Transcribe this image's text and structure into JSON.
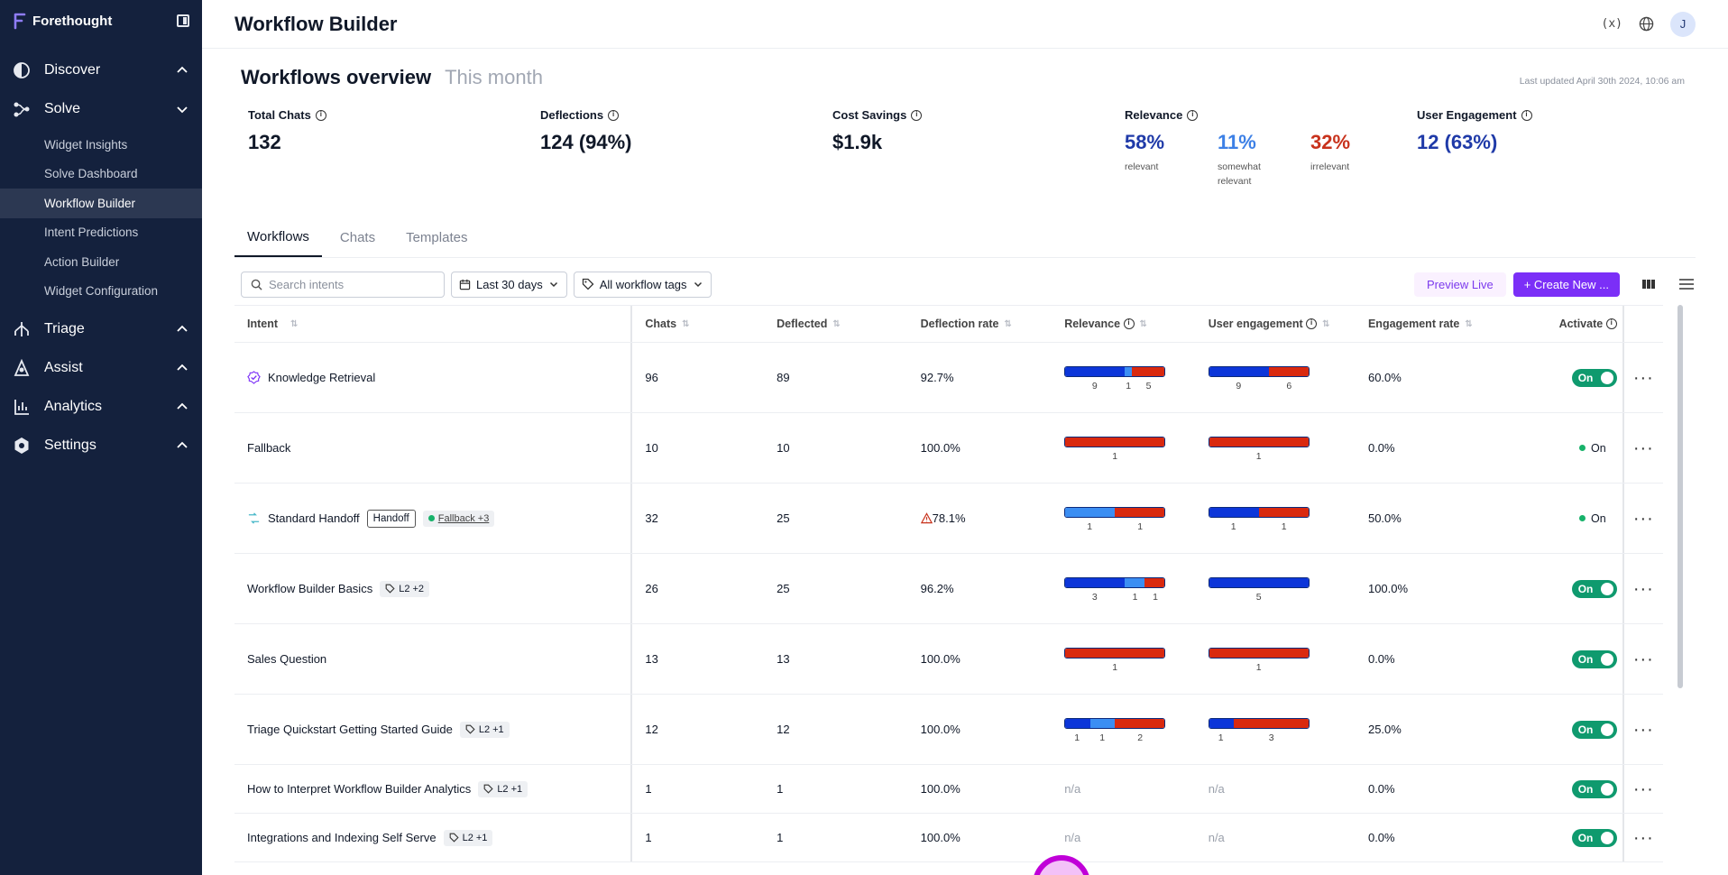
{
  "brand": {
    "name": "Forethought"
  },
  "nav": {
    "discover": "Discover",
    "solve": "Solve",
    "solve_items": [
      "Widget Insights",
      "Solve Dashboard",
      "Workflow Builder",
      "Intent Predictions",
      "Action Builder",
      "Widget Configuration"
    ],
    "triage": "Triage",
    "assist": "Assist",
    "analytics": "Analytics",
    "settings": "Settings"
  },
  "header": {
    "title": "Workflow Builder",
    "fx": "(x)",
    "avatar": "J"
  },
  "overview": {
    "title": "Workflows overview",
    "period": "This month",
    "updated": "Last updated April 30th 2024, 10:06 am",
    "total_chats": {
      "label": "Total Chats",
      "value": "132"
    },
    "deflections": {
      "label": "Deflections",
      "value": "124 (94%)"
    },
    "cost_savings": {
      "label": "Cost Savings",
      "value": "$1.9k"
    },
    "relevance": {
      "label": "Relevance",
      "relevant": {
        "value": "58%",
        "desc": "relevant"
      },
      "somewhat": {
        "value": "11%",
        "desc_1": "somewhat",
        "desc_2": "relevant"
      },
      "irrelevant": {
        "value": "32%",
        "desc": "irrelevant"
      }
    },
    "engagement": {
      "label": "User Engagement",
      "value": "12 (63%)"
    }
  },
  "tabs": [
    "Workflows",
    "Chats",
    "Templates"
  ],
  "toolbar": {
    "search_placeholder": "Search intents",
    "date_range": "Last 30 days",
    "tags": "All workflow tags",
    "preview": "Preview Live",
    "create": "+ Create New ..."
  },
  "columns": {
    "intent": "Intent",
    "chats": "Chats",
    "deflected": "Deflected",
    "rate": "Deflection rate",
    "relevance": "Relevance",
    "engagement": "User engagement",
    "erate": "Engagement rate",
    "activate": "Activate"
  },
  "rows": [
    {
      "name": "Knowledge Retrieval",
      "chats": "96",
      "deflected": "89",
      "rate": "92.7%",
      "erate": "60.0%",
      "status": "On",
      "relevance": [
        9,
        1,
        5
      ],
      "engagement": [
        9,
        0,
        6
      ]
    },
    {
      "name": "Fallback",
      "chats": "10",
      "deflected": "10",
      "rate": "100.0%",
      "erate": "0.0%",
      "status": "On",
      "relevance": [
        0,
        0,
        1
      ],
      "engagement": [
        0,
        0,
        1
      ]
    },
    {
      "name": "Standard Handoff",
      "tag": "Handoff",
      "chip": "Fallback +3",
      "chats": "32",
      "deflected": "25",
      "rate": "78.1%",
      "erate": "50.0%",
      "status": "On",
      "relevance": [
        0,
        1,
        1
      ],
      "engagement": [
        1,
        0,
        1
      ]
    },
    {
      "name": "Workflow Builder Basics",
      "chip": "L2 +2",
      "chats": "26",
      "deflected": "25",
      "rate": "96.2%",
      "erate": "100.0%",
      "status": "On",
      "relevance": [
        3,
        1,
        1
      ],
      "engagement": [
        5,
        0,
        0
      ]
    },
    {
      "name": "Sales Question",
      "chats": "13",
      "deflected": "13",
      "rate": "100.0%",
      "erate": "0.0%",
      "status": "On",
      "relevance": [
        0,
        0,
        1
      ],
      "engagement": [
        0,
        0,
        1
      ]
    },
    {
      "name": "Triage Quickstart Getting Started Guide",
      "chip": "L2 +1",
      "chats": "12",
      "deflected": "12",
      "rate": "100.0%",
      "erate": "25.0%",
      "status": "On",
      "relevance": [
        1,
        1,
        2
      ],
      "engagement": [
        1,
        0,
        3
      ]
    },
    {
      "name": "How to Interpret Workflow Builder Analytics",
      "chip": "L2 +1",
      "chats": "1",
      "deflected": "1",
      "rate": "100.0%",
      "erate": "0.0%",
      "status": "On",
      "relevance_na": "n/a",
      "engagement_na": "n/a"
    },
    {
      "name": "Integrations and Indexing Self Serve",
      "chip": "L2 +1",
      "chats": "1",
      "deflected": "1",
      "rate": "100.0%",
      "erate": "0.0%",
      "status": "On",
      "relevance_na": "n/a",
      "engagement_na": "n/a"
    }
  ],
  "colors": {
    "sidebar": "#14213d",
    "relevant": "#0c36d9",
    "somewhat": "#3b8ef3",
    "irrelevant": "#d9290f",
    "toggle": "#0f9a6e",
    "accent": "#7b2ff7"
  }
}
